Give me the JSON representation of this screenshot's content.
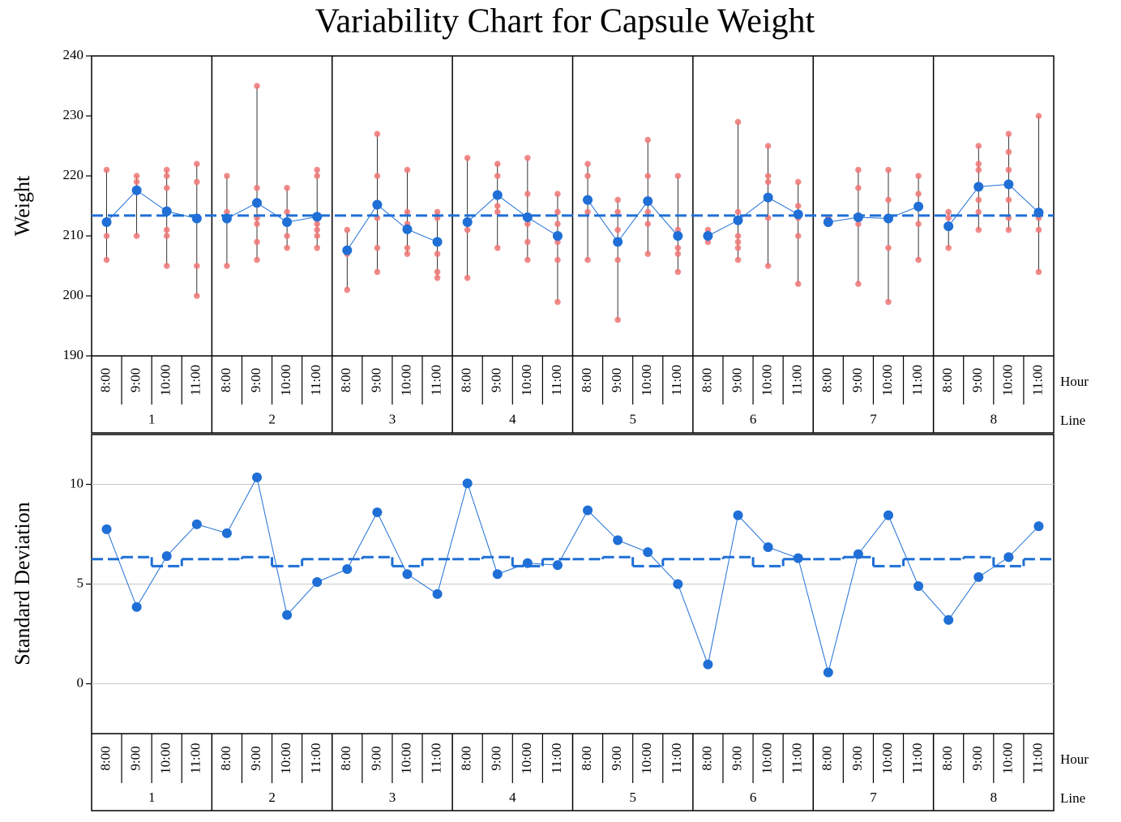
{
  "chart_data": [
    {
      "type": "variability",
      "title": "Variability Chart for Capsule Weight",
      "y_label": "Weight",
      "group_label": "Line",
      "subgroup_label": "Hour",
      "groups": [
        "1",
        "2",
        "3",
        "4",
        "5",
        "6",
        "7",
        "8"
      ],
      "subgroups": [
        "8:00",
        "9:00",
        "10:00",
        "11:00"
      ],
      "points": [
        [
          [
            221,
            210,
            206
          ],
          [
            220,
            219,
            210
          ],
          [
            221,
            220,
            218,
            211,
            210,
            205
          ],
          [
            222,
            219,
            205,
            200
          ]
        ],
        [
          [
            220,
            214,
            213,
            205
          ],
          [
            235,
            218,
            213,
            212,
            209,
            206
          ],
          [
            218,
            214,
            212,
            210,
            208
          ],
          [
            221,
            220,
            212,
            211,
            210,
            208
          ]
        ],
        [
          [
            211,
            207,
            201
          ],
          [
            227,
            220,
            213,
            208,
            204
          ],
          [
            221,
            214,
            212,
            208,
            207
          ],
          [
            214,
            213,
            207,
            204,
            203
          ]
        ],
        [
          [
            223,
            211,
            203
          ],
          [
            222,
            220,
            215,
            214,
            208
          ],
          [
            223,
            217,
            212,
            209,
            206
          ],
          [
            217,
            214,
            212,
            209,
            206,
            199
          ]
        ],
        [
          [
            222,
            220,
            214,
            206
          ],
          [
            216,
            214,
            211,
            206,
            196
          ],
          [
            226,
            220,
            214,
            212,
            207
          ],
          [
            220,
            211,
            210,
            208,
            207,
            204
          ]
        ],
        [
          [
            211,
            210,
            209
          ],
          [
            229,
            214,
            210,
            209,
            208,
            206
          ],
          [
            225,
            220,
            219,
            213,
            205
          ],
          [
            219,
            215,
            213,
            210,
            202
          ]
        ],
        [
          [
            213,
            212
          ],
          [
            221,
            218,
            212,
            202
          ],
          [
            221,
            216,
            208,
            199
          ],
          [
            220,
            217,
            212,
            206
          ]
        ],
        [
          [
            214,
            213,
            208
          ],
          [
            225,
            222,
            221,
            216,
            214,
            211
          ],
          [
            227,
            224,
            221,
            216,
            213,
            211
          ],
          [
            230,
            213,
            211,
            204
          ]
        ]
      ],
      "means": [
        [
          212.3,
          217.6,
          214.1,
          212.9
        ],
        [
          212.9,
          215.5,
          212.3,
          213.2
        ],
        [
          207.6,
          215.2,
          211.1,
          209.0
        ],
        [
          212.3,
          216.8,
          213.1,
          210.0
        ],
        [
          216.0,
          209.0,
          215.8,
          210.0
        ],
        [
          210.0,
          212.6,
          216.4,
          213.6
        ],
        [
          212.3,
          213.1,
          212.9,
          214.9
        ],
        [
          211.6,
          218.2,
          218.6,
          213.9
        ]
      ],
      "grand_mean": 213.4,
      "point_color": "#f07575",
      "mean_color": "#1f6fd6",
      "ylim": [
        190,
        240
      ],
      "yticks": [
        190,
        200,
        210,
        220,
        230,
        240
      ]
    },
    {
      "type": "line",
      "y_label": "Standard Deviation",
      "group_label": "Line",
      "subgroup_label": "Hour",
      "groups": [
        "1",
        "2",
        "3",
        "4",
        "5",
        "6",
        "7",
        "8"
      ],
      "subgroups": [
        "8:00",
        "9:00",
        "10:00",
        "11:00"
      ],
      "values": [
        [
          7.75,
          3.85,
          6.4,
          8.0
        ],
        [
          7.55,
          10.35,
          3.45,
          5.1
        ],
        [
          5.75,
          8.6,
          5.5,
          4.5
        ],
        [
          10.05,
          5.5,
          6.05,
          5.95
        ],
        [
          8.7,
          7.2,
          6.6,
          5.0
        ],
        [
          0.97,
          8.45,
          6.85,
          6.3
        ],
        [
          0.57,
          6.5,
          8.45,
          4.9
        ],
        [
          3.2,
          5.35,
          6.35,
          7.9
        ]
      ],
      "hour_sd": [
        6.25,
        6.35,
        5.9,
        6.25
      ],
      "color": "#1f6fd6",
      "grid": true,
      "ylim": [
        -2.5,
        12.5
      ],
      "yticks": [
        0,
        5,
        10
      ]
    }
  ]
}
